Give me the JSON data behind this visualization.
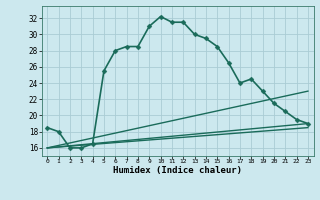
{
  "xlabel": "Humidex (Indice chaleur)",
  "ylabel": "",
  "background_color": "#cce8ee",
  "grid_color": "#aaccd4",
  "line_color": "#1a6b5a",
  "xlim": [
    -0.5,
    23.5
  ],
  "ylim": [
    15.0,
    33.5
  ],
  "yticks": [
    16,
    18,
    20,
    22,
    24,
    26,
    28,
    30,
    32
  ],
  "xticks": [
    0,
    1,
    2,
    3,
    4,
    5,
    6,
    7,
    8,
    9,
    10,
    11,
    12,
    13,
    14,
    15,
    16,
    17,
    18,
    19,
    20,
    21,
    22,
    23
  ],
  "series": [
    {
      "x": [
        0,
        1,
        2,
        3,
        4,
        5,
        6,
        7,
        8,
        9,
        10,
        11,
        12,
        13,
        14,
        15,
        16,
        17,
        18,
        19,
        20,
        21,
        22,
        23
      ],
      "y": [
        18.5,
        18.0,
        16.0,
        16.0,
        16.5,
        25.5,
        28.0,
        28.5,
        28.5,
        31.0,
        32.2,
        31.5,
        31.5,
        30.0,
        29.5,
        28.5,
        26.5,
        24.0,
        24.5,
        23.0,
        21.5,
        20.5,
        19.5,
        19.0
      ],
      "marker": "D",
      "markersize": 2.5,
      "linewidth": 1.2,
      "has_marker": true
    },
    {
      "x": [
        0,
        23
      ],
      "y": [
        16.0,
        23.0
      ],
      "markersize": 0,
      "linewidth": 1.0,
      "has_marker": false
    },
    {
      "x": [
        0,
        23
      ],
      "y": [
        16.0,
        19.0
      ],
      "markersize": 0,
      "linewidth": 1.0,
      "has_marker": false
    },
    {
      "x": [
        0,
        23
      ],
      "y": [
        16.0,
        18.5
      ],
      "markersize": 0,
      "linewidth": 1.0,
      "has_marker": false
    }
  ]
}
